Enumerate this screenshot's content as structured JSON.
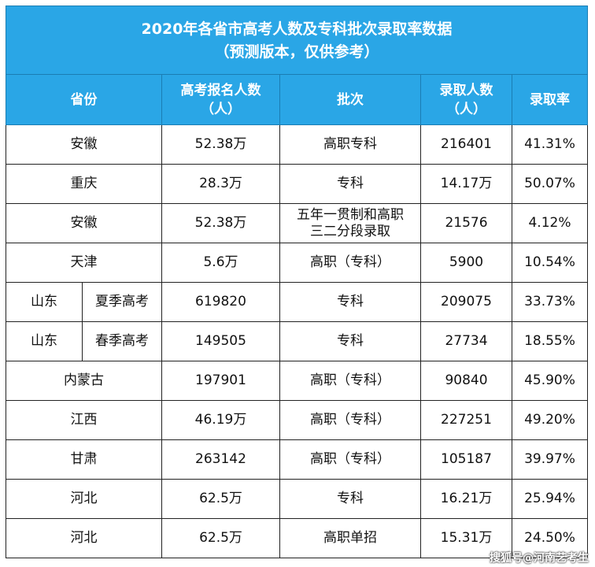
{
  "title": {
    "line1": "2020年各省市高考人数及专科批次录取率数据",
    "line2": "（预测版本，仅供参考）"
  },
  "header": {
    "province": "省份",
    "applicants_line1": "高考报名人数",
    "applicants_line2": "（人）",
    "batch": "批次",
    "admitted_line1": "录取人数",
    "admitted_line2": "（人）",
    "rate": "录取率"
  },
  "rows": [
    {
      "province": "安徽",
      "applicants": "52.38万",
      "batch": "高职专科",
      "admitted": "216401",
      "rate": "41.31%"
    },
    {
      "province": "重庆",
      "applicants": "28.3万",
      "batch": "专科",
      "admitted": "14.17万",
      "rate": "50.07%"
    },
    {
      "province": "安徽",
      "applicants": "52.38万",
      "batch_line1": "五年一贯制和高职",
      "batch_line2": "三二分段录取",
      "admitted": "21576",
      "rate": "4.12%"
    },
    {
      "province": "天津",
      "applicants": "5.6万",
      "batch": "高职（专科）",
      "admitted": "5900",
      "rate": "10.54%"
    },
    {
      "province": "山东",
      "sub": "夏季高考",
      "applicants": "619820",
      "batch": "专科",
      "admitted": "209075",
      "rate": "33.73%"
    },
    {
      "province": "山东",
      "sub": "春季高考",
      "applicants": "149505",
      "batch": "专科",
      "admitted": "27734",
      "rate": "18.55%"
    },
    {
      "province": "内蒙古",
      "applicants": "197901",
      "batch": "高职（专科）",
      "admitted": "90840",
      "rate": "45.90%"
    },
    {
      "province": "江西",
      "applicants": "46.19万",
      "batch": "高职（专科）",
      "admitted": "227251",
      "rate": "49.20%"
    },
    {
      "province": "甘肃",
      "applicants": "263142",
      "batch": "高职（专科）",
      "admitted": "105187",
      "rate": "39.97%"
    },
    {
      "province": "河北",
      "applicants": "62.5万",
      "batch": "专科",
      "admitted": "16.21万",
      "rate": "25.94%"
    },
    {
      "province": "河北",
      "applicants": "62.5万",
      "batch": "高职单招",
      "admitted": "15.31万",
      "rate": "24.50%"
    }
  ],
  "watermark": "搜狐号@河南艺考生",
  "colors": {
    "header_bg": "#2aa6e6",
    "header_text": "#ffffff",
    "grid_line": "#222222"
  }
}
